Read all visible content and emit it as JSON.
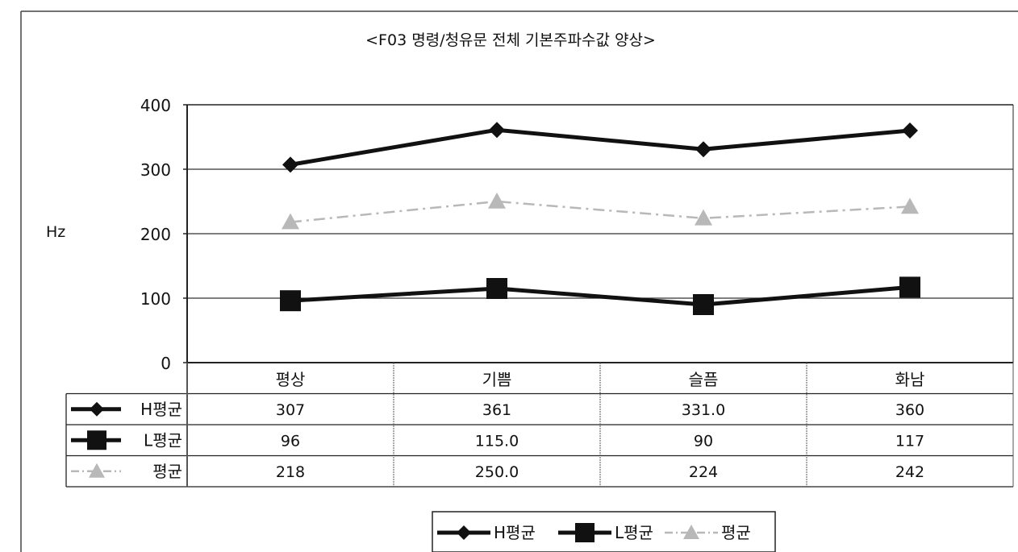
{
  "chart_data": {
    "type": "line",
    "title": "<F03 명령/청유문 전체 기본주파수값 양상>",
    "ylabel": "Hz",
    "xlabel": "",
    "ylim": [
      0,
      400
    ],
    "yticks": [
      "0",
      "100",
      "200",
      "300",
      "400"
    ],
    "grid": true,
    "categories": [
      "평상",
      "기쁨",
      "슬픔",
      "화남"
    ],
    "series": [
      {
        "name": "H평균",
        "values": [
          307,
          361,
          331.0,
          360
        ],
        "labels": [
          "307",
          "361",
          "331.0",
          "360"
        ],
        "color": "#111111",
        "marker": "diamond"
      },
      {
        "name": "L평균",
        "values": [
          96,
          115.0,
          90,
          117
        ],
        "labels": [
          "96",
          "115.0",
          "90",
          "117"
        ],
        "color": "#111111",
        "marker": "square"
      },
      {
        "name": "평균",
        "values": [
          218,
          250.0,
          224,
          242
        ],
        "labels": [
          "218",
          "250.0",
          "224",
          "242"
        ],
        "color": "#b8b8b8",
        "marker": "triangle"
      }
    ],
    "legend_position": "bottom",
    "data_table": true
  }
}
